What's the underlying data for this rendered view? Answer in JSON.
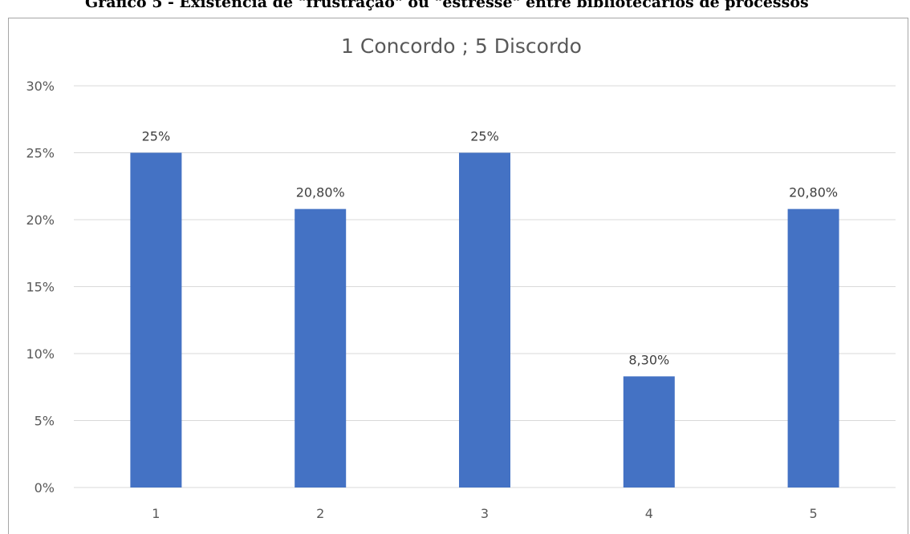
{
  "caption": "Gráfico 5 - Existência de \"frustração\" ou \"estresse\" entre bibliotecários de processos",
  "chart_data": {
    "type": "bar",
    "title": "1 Concordo ; 5 Discordo",
    "categories": [
      "1",
      "2",
      "3",
      "4",
      "5"
    ],
    "values": [
      25,
      20.8,
      25,
      8.3,
      20.8
    ],
    "data_labels": [
      "25%",
      "20,80%",
      "25%",
      "8,30%",
      "20,80%"
    ],
    "y_ticks": [
      0,
      5,
      10,
      15,
      20,
      25,
      30
    ],
    "y_tick_labels": [
      "0%",
      "5%",
      "10%",
      "15%",
      "20%",
      "25%",
      "30%"
    ],
    "ylim": [
      0,
      30
    ],
    "xlabel": "",
    "ylabel": "",
    "grid": true,
    "legend": "none",
    "bar_color": "#4472c4"
  }
}
